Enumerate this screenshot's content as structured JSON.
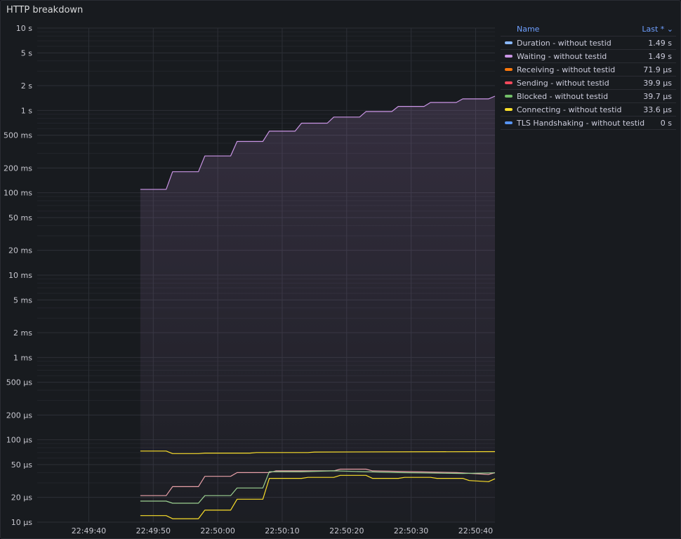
{
  "panel": {
    "title": "HTTP breakdown"
  },
  "legend": {
    "name_header": "Name",
    "value_header": "Last * ⌄",
    "items": [
      {
        "name": "Duration - without testid",
        "value": "1.49 s",
        "color": "#8ab8ff"
      },
      {
        "name": "Waiting - without testid",
        "value": "1.49 s",
        "color": "#ca95e5"
      },
      {
        "name": "Receiving - without testid",
        "value": "71.9 µs",
        "color": "#ff780a"
      },
      {
        "name": "Sending - without testid",
        "value": "39.9 µs",
        "color": "#f2495c"
      },
      {
        "name": "Blocked - without testid",
        "value": "39.7 µs",
        "color": "#73bf69"
      },
      {
        "name": "Connecting - without testid",
        "value": "33.6 µs",
        "color": "#fade2a"
      },
      {
        "name": "TLS Handshaking - without testid",
        "value": "0 s",
        "color": "#5794f2"
      }
    ]
  },
  "chart_data": {
    "type": "line",
    "y_scale": "log10",
    "ylim_seconds": [
      1e-05,
      10
    ],
    "y_ticks": [
      {
        "label": "10 s",
        "value": 10
      },
      {
        "label": "5 s",
        "value": 5
      },
      {
        "label": "2 s",
        "value": 2
      },
      {
        "label": "1 s",
        "value": 1
      },
      {
        "label": "500 ms",
        "value": 0.5
      },
      {
        "label": "200 ms",
        "value": 0.2
      },
      {
        "label": "100 ms",
        "value": 0.1
      },
      {
        "label": "50 ms",
        "value": 0.05
      },
      {
        "label": "20 ms",
        "value": 0.02
      },
      {
        "label": "10 ms",
        "value": 0.01
      },
      {
        "label": "5 ms",
        "value": 0.005
      },
      {
        "label": "2 ms",
        "value": 0.002
      },
      {
        "label": "1 ms",
        "value": 0.001
      },
      {
        "label": "500 µs",
        "value": 0.0005
      },
      {
        "label": "200 µs",
        "value": 0.0002
      },
      {
        "label": "100 µs",
        "value": 0.0001
      },
      {
        "label": "50 µs",
        "value": 5e-05
      },
      {
        "label": "20 µs",
        "value": 2e-05
      },
      {
        "label": "10 µs",
        "value": 1e-05
      }
    ],
    "xlim": [
      "22:49:32",
      "22:50:43"
    ],
    "x_ticks": [
      "22:49:40",
      "22:49:50",
      "22:50:00",
      "22:50:10",
      "22:50:20",
      "22:50:30",
      "22:50:40"
    ],
    "series": [
      {
        "name": "Waiting - without testid",
        "color": "#ca95e5",
        "fill": true,
        "points": [
          [
            "22:49:48",
            0.11
          ],
          [
            "22:49:52",
            0.11
          ],
          [
            "22:49:53",
            0.18
          ],
          [
            "22:49:57",
            0.18
          ],
          [
            "22:49:58",
            0.28
          ],
          [
            "22:50:02",
            0.28
          ],
          [
            "22:50:03",
            0.42
          ],
          [
            "22:50:07",
            0.42
          ],
          [
            "22:50:08",
            0.56
          ],
          [
            "22:50:12",
            0.56
          ],
          [
            "22:50:13",
            0.7
          ],
          [
            "22:50:17",
            0.7
          ],
          [
            "22:50:18",
            0.83
          ],
          [
            "22:50:22",
            0.83
          ],
          [
            "22:50:23",
            0.97
          ],
          [
            "22:50:27",
            0.97
          ],
          [
            "22:50:28",
            1.12
          ],
          [
            "22:50:32",
            1.12
          ],
          [
            "22:50:33",
            1.25
          ],
          [
            "22:50:37",
            1.25
          ],
          [
            "22:50:38",
            1.38
          ],
          [
            "22:50:42",
            1.38
          ],
          [
            "22:50:43",
            1.49
          ]
        ]
      },
      {
        "name": "Receiving - without testid",
        "color": "#fade2a",
        "fill": false,
        "points": [
          [
            "22:49:48",
            7.3e-05
          ],
          [
            "22:49:52",
            7.3e-05
          ],
          [
            "22:49:53",
            6.8e-05
          ],
          [
            "22:49:57",
            6.8e-05
          ],
          [
            "22:49:58",
            6.9e-05
          ],
          [
            "22:50:05",
            6.9e-05
          ],
          [
            "22:50:06",
            7e-05
          ],
          [
            "22:50:14",
            7e-05
          ],
          [
            "22:50:15",
            7.1e-05
          ],
          [
            "22:50:43",
            7.19e-05
          ]
        ]
      },
      {
        "name": "Sending - without testid",
        "color": "#e8a0a8",
        "fill": false,
        "points": [
          [
            "22:49:48",
            2.1e-05
          ],
          [
            "22:49:52",
            2.1e-05
          ],
          [
            "22:49:53",
            2.7e-05
          ],
          [
            "22:49:57",
            2.7e-05
          ],
          [
            "22:49:58",
            3.6e-05
          ],
          [
            "22:50:02",
            3.6e-05
          ],
          [
            "22:50:03",
            4e-05
          ],
          [
            "22:50:08",
            4e-05
          ],
          [
            "22:50:09",
            4.2e-05
          ],
          [
            "22:50:18",
            4.2e-05
          ],
          [
            "22:50:19",
            4.4e-05
          ],
          [
            "22:50:23",
            4.4e-05
          ],
          [
            "22:50:24",
            4.2e-05
          ],
          [
            "22:50:37",
            4e-05
          ],
          [
            "22:50:42",
            3.8e-05
          ],
          [
            "22:50:43",
            3.99e-05
          ]
        ]
      },
      {
        "name": "Blocked - without testid",
        "color": "#9bd091",
        "fill": false,
        "points": [
          [
            "22:49:48",
            1.8e-05
          ],
          [
            "22:49:52",
            1.8e-05
          ],
          [
            "22:49:53",
            1.7e-05
          ],
          [
            "22:49:57",
            1.7e-05
          ],
          [
            "22:49:58",
            2.1e-05
          ],
          [
            "22:50:02",
            2.1e-05
          ],
          [
            "22:50:03",
            2.6e-05
          ],
          [
            "22:50:07",
            2.6e-05
          ],
          [
            "22:50:08",
            4.1e-05
          ],
          [
            "22:50:13",
            4.1e-05
          ],
          [
            "22:50:18",
            4.2e-05
          ],
          [
            "22:50:28",
            4e-05
          ],
          [
            "22:50:38",
            3.9e-05
          ],
          [
            "22:50:43",
            3.97e-05
          ]
        ]
      },
      {
        "name": "Connecting - without testid",
        "color": "#fade2a",
        "fill": false,
        "points": [
          [
            "22:49:48",
            1.2e-05
          ],
          [
            "22:49:52",
            1.2e-05
          ],
          [
            "22:49:53",
            1.1e-05
          ],
          [
            "22:49:57",
            1.1e-05
          ],
          [
            "22:49:58",
            1.4e-05
          ],
          [
            "22:50:02",
            1.4e-05
          ],
          [
            "22:50:03",
            1.9e-05
          ],
          [
            "22:50:07",
            1.9e-05
          ],
          [
            "22:50:08",
            3.4e-05
          ],
          [
            "22:50:13",
            3.4e-05
          ],
          [
            "22:50:14",
            3.5e-05
          ],
          [
            "22:50:18",
            3.5e-05
          ],
          [
            "22:50:19",
            3.7e-05
          ],
          [
            "22:50:23",
            3.7e-05
          ],
          [
            "22:50:24",
            3.4e-05
          ],
          [
            "22:50:28",
            3.4e-05
          ],
          [
            "22:50:29",
            3.5e-05
          ],
          [
            "22:50:33",
            3.5e-05
          ],
          [
            "22:50:34",
            3.4e-05
          ],
          [
            "22:50:38",
            3.4e-05
          ],
          [
            "22:50:39",
            3.2e-05
          ],
          [
            "22:50:42",
            3.1e-05
          ],
          [
            "22:50:43",
            3.36e-05
          ]
        ]
      }
    ]
  }
}
